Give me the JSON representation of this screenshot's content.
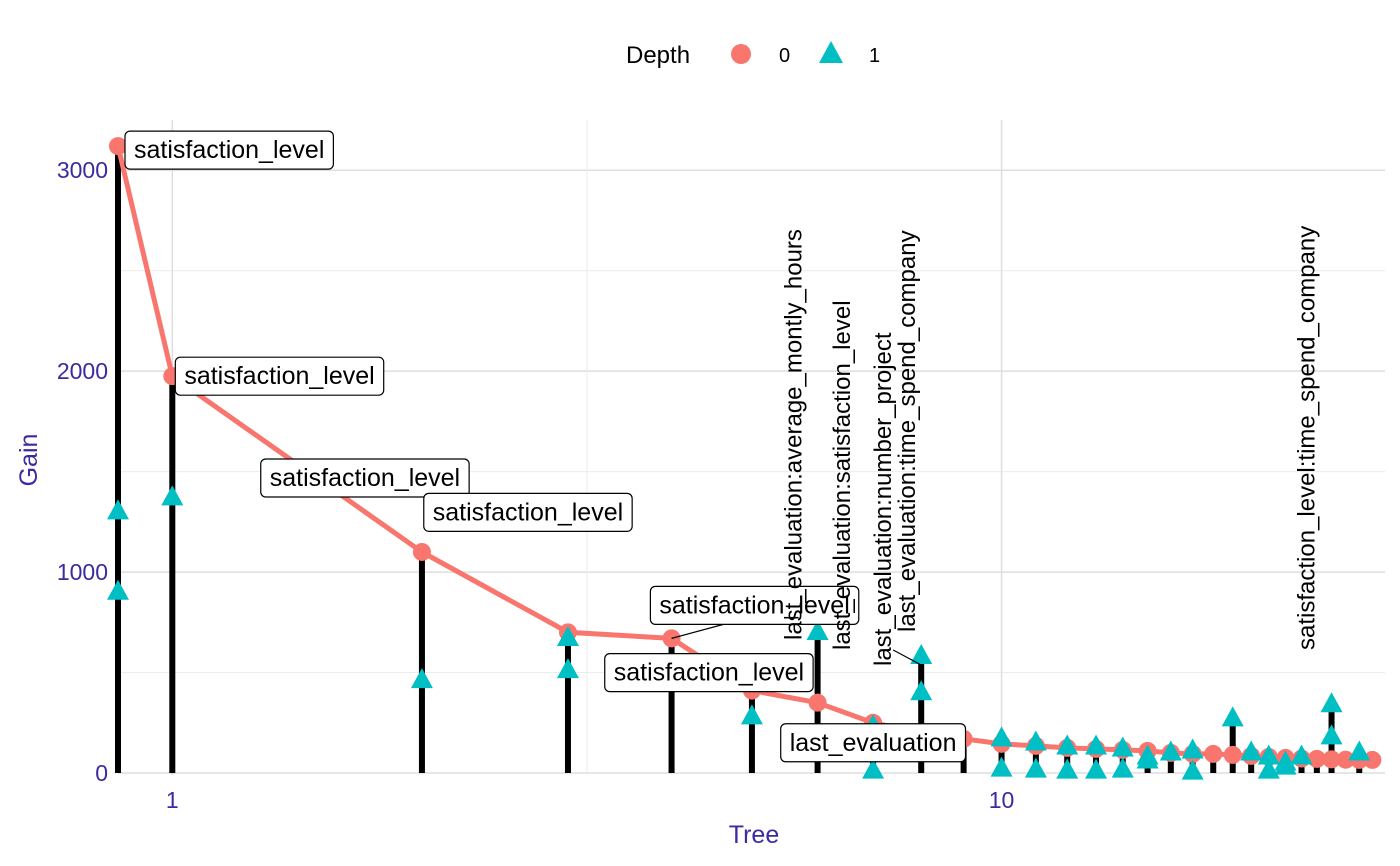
{
  "chart_data": {
    "type": "line",
    "xlabel": "Tree",
    "ylabel": "Gain",
    "x_scale": "log10",
    "xlim": [
      0.86,
      29
    ],
    "ylim": [
      -10,
      3250
    ],
    "x_ticks": [
      "1",
      "10"
    ],
    "y_ticks": [
      "0",
      "1000",
      "2000",
      "3000"
    ],
    "grid": true,
    "legend": {
      "position": "top",
      "title": "Depth",
      "entries": [
        {
          "label": "0",
          "color": "#F8766D",
          "shape": "circle"
        },
        {
          "label": "1",
          "color": "#00BFC4",
          "shape": "triangle"
        }
      ]
    },
    "series": [
      {
        "name": "0",
        "color": "#F8766D",
        "shape": "circle",
        "points": [
          {
            "x": 0.86,
            "y": 3120
          },
          {
            "x": 1,
            "y": 1975
          },
          {
            "x": 2,
            "y": 1100
          },
          {
            "x": 3,
            "y": 700
          },
          {
            "x": 4,
            "y": 670
          },
          {
            "x": 5,
            "y": 410
          },
          {
            "x": 6,
            "y": 350
          },
          {
            "x": 7,
            "y": 250
          },
          {
            "x": 8,
            "y": 200
          },
          {
            "x": 9,
            "y": 170
          },
          {
            "x": 10,
            "y": 145
          },
          {
            "x": 11,
            "y": 135
          },
          {
            "x": 12,
            "y": 125
          },
          {
            "x": 13,
            "y": 120
          },
          {
            "x": 14,
            "y": 115
          },
          {
            "x": 15,
            "y": 110
          },
          {
            "x": 16,
            "y": 100
          },
          {
            "x": 17,
            "y": 95
          },
          {
            "x": 18,
            "y": 95
          },
          {
            "x": 19,
            "y": 90
          },
          {
            "x": 20,
            "y": 85
          },
          {
            "x": 21,
            "y": 80
          },
          {
            "x": 22,
            "y": 75
          },
          {
            "x": 23,
            "y": 72
          },
          {
            "x": 24,
            "y": 70
          },
          {
            "x": 25,
            "y": 68
          },
          {
            "x": 26,
            "y": 66
          },
          {
            "x": 27,
            "y": 65
          },
          {
            "x": 28,
            "y": 65
          }
        ]
      },
      {
        "name": "1",
        "color": "#00BFC4",
        "shape": "triangle",
        "points": [
          {
            "x": 0.86,
            "y": 1300
          },
          {
            "x": 0.86,
            "y": 900
          },
          {
            "x": 1,
            "y": 1370
          },
          {
            "x": 2,
            "y": 460
          },
          {
            "x": 3,
            "y": 670
          },
          {
            "x": 3,
            "y": 510
          },
          {
            "x": 4,
            "y": 470
          },
          {
            "x": 5,
            "y": 280
          },
          {
            "x": 6,
            "y": 700
          },
          {
            "x": 7,
            "y": 10
          },
          {
            "x": 7,
            "y": 230
          },
          {
            "x": 8,
            "y": 580
          },
          {
            "x": 8,
            "y": 400
          },
          {
            "x": 10,
            "y": 170
          },
          {
            "x": 10,
            "y": 20
          },
          {
            "x": 11,
            "y": 150
          },
          {
            "x": 11,
            "y": 15
          },
          {
            "x": 12,
            "y": 130
          },
          {
            "x": 12,
            "y": 10
          },
          {
            "x": 13,
            "y": 130
          },
          {
            "x": 13,
            "y": 10
          },
          {
            "x": 14,
            "y": 120
          },
          {
            "x": 14,
            "y": 15
          },
          {
            "x": 15,
            "y": 80
          },
          {
            "x": 15,
            "y": 60
          },
          {
            "x": 16,
            "y": 100
          },
          {
            "x": 17,
            "y": 110
          },
          {
            "x": 17,
            "y": 5
          },
          {
            "x": 19,
            "y": 270
          },
          {
            "x": 20,
            "y": 100
          },
          {
            "x": 21,
            "y": 80
          },
          {
            "x": 21,
            "y": 10
          },
          {
            "x": 22,
            "y": 50
          },
          {
            "x": 22,
            "y": 30
          },
          {
            "x": 23,
            "y": 80
          },
          {
            "x": 25,
            "y": 340
          },
          {
            "x": 25,
            "y": 180
          },
          {
            "x": 27,
            "y": 100
          }
        ]
      }
    ],
    "stems": [
      {
        "x": 0.86,
        "y": 3120
      },
      {
        "x": 1,
        "y": 1975
      },
      {
        "x": 2,
        "y": 1100
      },
      {
        "x": 3,
        "y": 700
      },
      {
        "x": 4,
        "y": 670
      },
      {
        "x": 5,
        "y": 410
      },
      {
        "x": 6,
        "y": 700
      },
      {
        "x": 7,
        "y": 250
      },
      {
        "x": 8,
        "y": 580
      },
      {
        "x": 9,
        "y": 170
      },
      {
        "x": 10,
        "y": 170
      },
      {
        "x": 11,
        "y": 150
      },
      {
        "x": 12,
        "y": 130
      },
      {
        "x": 13,
        "y": 130
      },
      {
        "x": 14,
        "y": 120
      },
      {
        "x": 15,
        "y": 110
      },
      {
        "x": 16,
        "y": 100
      },
      {
        "x": 17,
        "y": 110
      },
      {
        "x": 18,
        "y": 95
      },
      {
        "x": 19,
        "y": 270
      },
      {
        "x": 20,
        "y": 100
      },
      {
        "x": 21,
        "y": 80
      },
      {
        "x": 22,
        "y": 75
      },
      {
        "x": 23,
        "y": 80
      },
      {
        "x": 24,
        "y": 70
      },
      {
        "x": 25,
        "y": 340
      },
      {
        "x": 27,
        "y": 100
      }
    ],
    "box_labels": [
      {
        "text": "satisfaction_level",
        "x": 0.86,
        "y": 3120
      },
      {
        "text": "satisfaction_level",
        "x": 1,
        "y": 1975
      },
      {
        "text": "satisfaction_level",
        "x": 2,
        "y": 1100
      },
      {
        "text": "satisfaction_level",
        "x": 3,
        "y": 700
      },
      {
        "text": "satisfaction_level",
        "x": 4,
        "y": 670
      },
      {
        "text": "satisfaction_level",
        "x": 5,
        "y": 410
      },
      {
        "text": "last_evaluation",
        "x": 7,
        "y": 250
      }
    ],
    "rotated_labels": [
      {
        "text": "last_evaluation:average_montly_hours",
        "x": 6
      },
      {
        "text": "last_evaluation:satisfaction_level",
        "x": 7
      },
      {
        "text": "last_evaluation:number_project",
        "x": 8
      },
      {
        "text": "last_evaluation:time_spend_company",
        "x": 8
      },
      {
        "text": "satisfaction_level:time_spend_company",
        "x": 25
      }
    ]
  }
}
